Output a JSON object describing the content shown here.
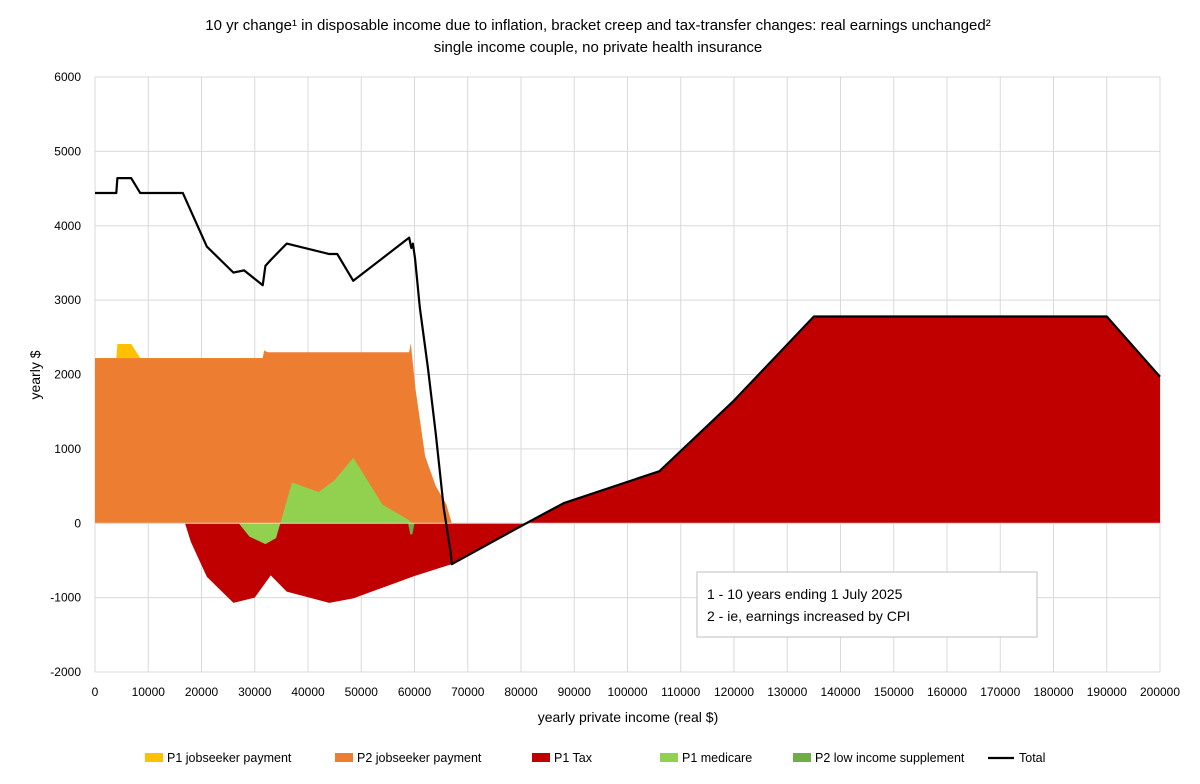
{
  "chart_data": {
    "type": "area",
    "title": "10 yr change¹ in disposable income due to inflation, bracket creep and tax-transfer changes: real earnings unchanged²",
    "subtitle": "single income couple, no private health insurance",
    "xlabel": "yearly private income (real $)",
    "ylabel": "yearly $",
    "xlim": [
      0,
      200000
    ],
    "ylim": [
      -2000,
      6000
    ],
    "x_ticks": [
      0,
      10000,
      20000,
      30000,
      40000,
      50000,
      60000,
      70000,
      80000,
      90000,
      100000,
      110000,
      120000,
      130000,
      140000,
      150000,
      160000,
      170000,
      180000,
      190000,
      200000
    ],
    "y_ticks": [
      -2000,
      -1000,
      0,
      1000,
      2000,
      3000,
      4000,
      5000,
      6000
    ],
    "grid": true,
    "legend_position": "bottom",
    "annotations": [
      "1 - 10 years ending 1 July 2025",
      "2 - ie, earnings increased by CPI"
    ],
    "series": [
      {
        "name": "P1 jobseeker payment",
        "color": "#FFC000",
        "kind": "area",
        "points": [
          [
            0,
            2220
          ],
          [
            4000,
            2220
          ],
          [
            4200,
            2410
          ],
          [
            6800,
            2410
          ],
          [
            8500,
            2220
          ],
          [
            31500,
            2220
          ],
          [
            31800,
            2350
          ],
          [
            32300,
            1900
          ],
          [
            33000,
            1500
          ],
          [
            34000,
            900
          ],
          [
            35500,
            0
          ],
          [
            200000,
            0
          ]
        ]
      },
      {
        "name": "P2 jobseeker payment",
        "color": "#ED7D31",
        "kind": "area",
        "points": [
          [
            0,
            2220
          ],
          [
            16000,
            2220
          ],
          [
            31500,
            2220
          ],
          [
            31800,
            2320
          ],
          [
            32500,
            2300
          ],
          [
            59000,
            2300
          ],
          [
            59300,
            2420
          ],
          [
            60200,
            1800
          ],
          [
            62000,
            900
          ],
          [
            64000,
            500
          ],
          [
            66000,
            250
          ],
          [
            67000,
            0
          ],
          [
            200000,
            0
          ]
        ]
      },
      {
        "name": "P1 Tax",
        "color": "#C00000",
        "kind": "area",
        "points": [
          [
            0,
            0
          ],
          [
            16900,
            0
          ],
          [
            18000,
            -250
          ],
          [
            21000,
            -720
          ],
          [
            23000,
            -860
          ],
          [
            26000,
            -1070
          ],
          [
            30000,
            -1000
          ],
          [
            33000,
            -700
          ],
          [
            36000,
            -920
          ],
          [
            44000,
            -1070
          ],
          [
            48500,
            -1010
          ],
          [
            55000,
            -840
          ],
          [
            60000,
            -710
          ],
          [
            67000,
            -550
          ],
          [
            81000,
            0
          ],
          [
            88000,
            270
          ],
          [
            106000,
            700
          ],
          [
            120000,
            1650
          ],
          [
            135000,
            2780
          ],
          [
            190000,
            2780
          ],
          [
            200000,
            1970
          ]
        ]
      },
      {
        "name": "P1 medicare",
        "color": "#92D050",
        "kind": "area",
        "points": [
          [
            27000,
            0
          ],
          [
            29000,
            -180
          ],
          [
            32000,
            -280
          ],
          [
            34000,
            -200
          ],
          [
            37000,
            550
          ],
          [
            42000,
            420
          ],
          [
            45000,
            580
          ],
          [
            48500,
            880
          ],
          [
            54000,
            250
          ],
          [
            59000,
            40
          ],
          [
            59500,
            0
          ]
        ]
      },
      {
        "name": "P2 low income supplement",
        "color": "#70AD47",
        "kind": "area",
        "points": [
          [
            58800,
            0
          ],
          [
            59200,
            -150
          ],
          [
            59600,
            -150
          ],
          [
            60000,
            0
          ]
        ]
      },
      {
        "name": "Total",
        "color": "#000000",
        "kind": "line",
        "points": [
          [
            0,
            4440
          ],
          [
            4000,
            4440
          ],
          [
            4200,
            4640
          ],
          [
            6800,
            4640
          ],
          [
            8500,
            4440
          ],
          [
            16500,
            4440
          ],
          [
            21000,
            3720
          ],
          [
            26000,
            3370
          ],
          [
            28000,
            3400
          ],
          [
            31500,
            3200
          ],
          [
            32000,
            3460
          ],
          [
            33000,
            3540
          ],
          [
            36000,
            3760
          ],
          [
            44000,
            3620
          ],
          [
            45500,
            3620
          ],
          [
            48500,
            3260
          ],
          [
            59000,
            3840
          ],
          [
            59400,
            3700
          ],
          [
            59700,
            3760
          ],
          [
            60100,
            3560
          ],
          [
            61000,
            2900
          ],
          [
            62500,
            2100
          ],
          [
            64000,
            1200
          ],
          [
            65500,
            200
          ],
          [
            66800,
            -400
          ],
          [
            67000,
            -550
          ],
          [
            81000,
            0
          ],
          [
            88000,
            270
          ],
          [
            106000,
            700
          ],
          [
            120000,
            1650
          ],
          [
            135000,
            2780
          ],
          [
            190000,
            2780
          ],
          [
            200000,
            1970
          ]
        ]
      }
    ]
  }
}
